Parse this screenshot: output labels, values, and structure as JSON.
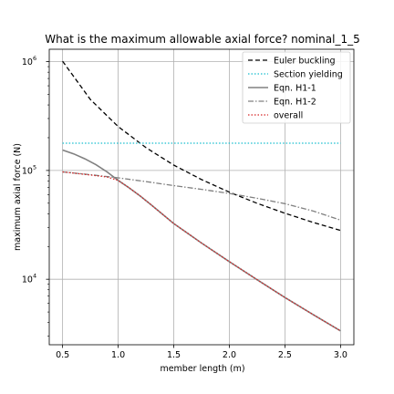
{
  "chart_data": {
    "type": "line",
    "title": "What is the maximum allowable axial force? nominal_1_5",
    "xlabel": "member length (m)",
    "ylabel": "maximum axial force (N)",
    "xlim": [
      0.38,
      3.12
    ],
    "ylim": [
      2500,
      1300000
    ],
    "yscale": "log",
    "grid": true,
    "legend": "top-right",
    "x_ticks": [
      {
        "value": 0.5,
        "label": "0.5"
      },
      {
        "value": 1.0,
        "label": "1.0"
      },
      {
        "value": 1.5,
        "label": "1.5"
      },
      {
        "value": 2.0,
        "label": "2.0"
      },
      {
        "value": 2.5,
        "label": "2.5"
      },
      {
        "value": 3.0,
        "label": "3.0"
      }
    ],
    "y_ticks": [
      {
        "value": 10000,
        "base": "10",
        "exp": "4"
      },
      {
        "value": 100000,
        "base": "10",
        "exp": "5"
      },
      {
        "value": 1000000,
        "base": "10",
        "exp": "6"
      }
    ],
    "series": [
      {
        "name": "Euler buckling",
        "color": "#000000",
        "dash": "5,3",
        "x": [
          0.5,
          0.75,
          1.0,
          1.25,
          1.5,
          1.75,
          2.0,
          2.25,
          2.5,
          2.75,
          3.0
        ],
        "y": [
          1010000,
          449000,
          253000,
          162000,
          112000,
          82500,
          63200,
          49900,
          40400,
          33400,
          28100
        ]
      },
      {
        "name": "Section yielding",
        "color": "#17becf",
        "dash": "1.5,2",
        "x": [
          0.5,
          3.0
        ],
        "y": [
          178000,
          178000
        ]
      },
      {
        "name": "Eqn. H1-1",
        "color": "#808080",
        "dash": "",
        "x": [
          0.5,
          0.6,
          0.7,
          0.8,
          0.9,
          1.0,
          1.1,
          1.2,
          1.3,
          1.4,
          1.5,
          1.75,
          2.0,
          2.25,
          2.5,
          2.75,
          3.0
        ],
        "y": [
          154000,
          142000,
          128000,
          113000,
          97000,
          81000,
          69000,
          58000,
          48000,
          39500,
          32500,
          21500,
          14500,
          9900,
          6800,
          4750,
          3350
        ]
      },
      {
        "name": "Eqn. H1-2",
        "color": "#808080",
        "dash": "6,2,1.5,2",
        "x": [
          0.5,
          0.75,
          1.0,
          1.25,
          1.5,
          1.75,
          2.0,
          2.25,
          2.5,
          2.75,
          3.0
        ],
        "y": [
          97000,
          91500,
          85500,
          79000,
          72500,
          67000,
          61500,
          55500,
          49500,
          42500,
          35000
        ]
      },
      {
        "name": "overall",
        "color": "#d62728",
        "dash": "1.5,2",
        "x": [
          0.5,
          0.6,
          0.7,
          0.8,
          0.9,
          1.0,
          1.1,
          1.2,
          1.3,
          1.4,
          1.5,
          1.75,
          2.0,
          2.25,
          2.5,
          2.75,
          3.0
        ],
        "y": [
          97000,
          94500,
          92000,
          89500,
          87000,
          81000,
          69000,
          58000,
          48000,
          39500,
          32500,
          21500,
          14500,
          9900,
          6800,
          4750,
          3350
        ]
      }
    ]
  }
}
